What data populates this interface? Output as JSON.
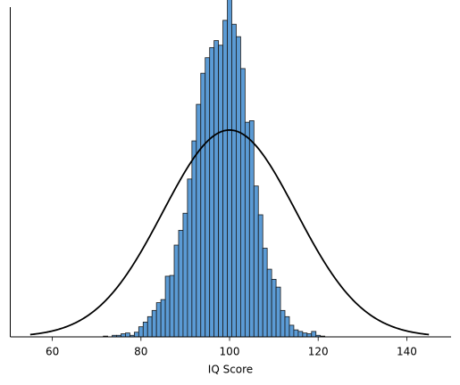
{
  "chart_data": {
    "type": "bar",
    "title": "",
    "xlabel": "IQ Score",
    "ylabel": "",
    "xlim": [
      50.5,
      150
    ],
    "ylim": [
      0,
      0.0424
    ],
    "grid": false,
    "x_ticks": [
      60,
      80,
      100,
      120,
      140
    ],
    "bar_color": "#5b9bd5",
    "bin_width": 1,
    "series": [
      {
        "type": "histogram",
        "x": [
          72,
          73,
          74,
          75,
          76,
          77,
          78,
          79,
          80,
          81,
          82,
          83,
          84,
          85,
          86,
          87,
          88,
          89,
          90,
          91,
          92,
          93,
          94,
          95,
          96,
          97,
          98,
          99,
          100,
          101,
          102,
          103,
          104,
          105,
          106,
          107,
          108,
          109,
          110,
          111,
          112,
          113,
          114,
          115,
          116,
          117,
          118,
          119,
          120,
          121,
          122,
          123,
          124
        ],
        "values": [
          0.0001,
          0,
          0.0002,
          0.0002,
          0.0004,
          0.0005,
          0.0002,
          0.0006,
          0.0013,
          0.0019,
          0.0026,
          0.0034,
          0.0044,
          0.0048,
          0.0078,
          0.0079,
          0.0118,
          0.0137,
          0.0159,
          0.0203,
          0.0252,
          0.0299,
          0.0339,
          0.0359,
          0.0372,
          0.0381,
          0.0375,
          0.0407,
          0.0438,
          0.0402,
          0.0386,
          0.0345,
          0.0276,
          0.0278,
          0.0194,
          0.0157,
          0.0114,
          0.0087,
          0.0074,
          0.0064,
          0.0034,
          0.0026,
          0.0015,
          0.0009,
          0.0007,
          0.0005,
          0.0004,
          0.0007,
          0.0002,
          0.0001,
          0,
          0,
          0
        ]
      },
      {
        "type": "line",
        "curve": "normal",
        "mean": 100,
        "std": 15,
        "x_range": [
          55,
          145
        ]
      }
    ]
  }
}
